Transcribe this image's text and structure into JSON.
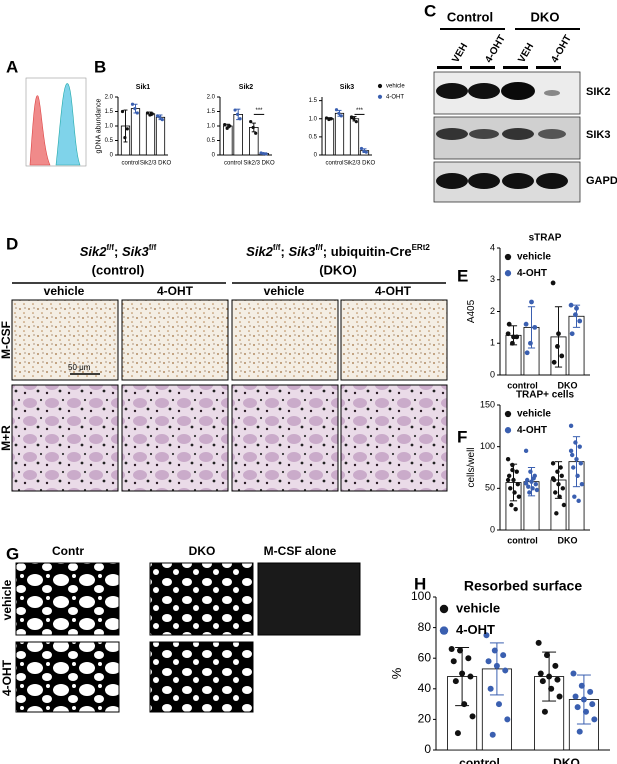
{
  "figure": {
    "panel_labels": [
      "A",
      "B",
      "C",
      "D",
      "E",
      "F",
      "G",
      "H"
    ],
    "blot": {
      "groups": [
        "Control",
        "DKO"
      ],
      "lanes": [
        "VEH",
        "4-OHT",
        "VEH",
        "4-OHT"
      ],
      "proteins": [
        "SIK2",
        "SIK3",
        "GAPDH"
      ]
    },
    "micrographs": {
      "left_title": [
        "Sik2",
        "f/f",
        "; ",
        "Sik3",
        "f/f"
      ],
      "left_subtitle": "(control)",
      "right_title": [
        "Sik2",
        "f/f",
        "; ",
        "Sik3",
        "f/f",
        "; ubiquitin-Cre",
        "ERt2"
      ],
      "right_subtitle": "(DKO)",
      "columns": [
        "vehicle",
        "4-OHT",
        "vehicle",
        "4-OHT"
      ],
      "rows": [
        "M-CSF",
        "M+R"
      ],
      "scale_bar": "50 μm"
    },
    "resorption": {
      "columns": [
        "Contr",
        "DKO",
        "M-CSF alone"
      ],
      "rows": [
        "vehicle",
        "4-OHT"
      ]
    }
  },
  "chart_data": [
    {
      "type": "bar",
      "title": "Sik1",
      "ylabel": "gDNA abundance",
      "categories": [
        "control",
        "Sik2/3 DKO"
      ],
      "ylim": [
        0,
        2
      ],
      "yticks": [
        0,
        0.5,
        {
          "value": 1,
          "label": "1.0"
        },
        1.5,
        {
          "value": 2,
          "label": "2.0"
        }
      ],
      "series": [
        {
          "color": "#111111",
          "values": [
            1.0,
            1.42
          ],
          "errors": [
            0.55,
            0.06
          ],
          "points": [
            [
              1.5,
              0.6,
              0.9
            ],
            [
              1.45,
              1.38,
              1.42
            ]
          ]
        },
        {
          "color": "#3a5fb0",
          "values": [
            1.6,
            1.3
          ],
          "errors": [
            0.15,
            0.08
          ],
          "points": [
            [
              1.75,
              1.6,
              1.45
            ],
            [
              1.35,
              1.3,
              1.22
            ]
          ]
        }
      ]
    },
    {
      "type": "bar",
      "title": "Sik2",
      "categories": [
        "control",
        "Sik2/3 DKO"
      ],
      "ylim": [
        0,
        2
      ],
      "yticks": [
        0,
        0.5,
        {
          "value": 1,
          "label": "1.0"
        },
        1.5,
        {
          "value": 2,
          "label": "2.0"
        }
      ],
      "annotation": "***",
      "series": [
        {
          "color": "#111111",
          "values": [
            1.0,
            0.95
          ],
          "errors": [
            0.06,
            0.15
          ],
          "points": [
            [
              1.05,
              0.92,
              1.0
            ],
            [
              1.15,
              0.95,
              0.75
            ]
          ]
        },
        {
          "color": "#3a5fb0",
          "values": [
            1.4,
            0.05
          ],
          "errors": [
            0.18,
            0.02
          ],
          "points": [
            [
              1.55,
              1.4,
              1.25
            ],
            [
              0.07,
              0.05,
              0.04
            ]
          ]
        }
      ]
    },
    {
      "type": "bar",
      "title": "Sik3",
      "categories": [
        "control",
        "Sik2/3 DKO"
      ],
      "ylim": [
        0,
        1.6
      ],
      "yticks": [
        0,
        0.5,
        {
          "value": 1,
          "label": "1.0"
        },
        1.5
      ],
      "annotation": "***",
      "legend": "right",
      "series": [
        {
          "name": "vehicle",
          "color": "#111111",
          "values": [
            1.0,
            1.0
          ],
          "errors": [
            0.03,
            0.06
          ],
          "points": [
            [
              1.02,
              0.98,
              1.0
            ],
            [
              1.05,
              1.0,
              0.92
            ]
          ]
        },
        {
          "name": "4-OHT",
          "color": "#3a5fb0",
          "values": [
            1.15,
            0.12
          ],
          "errors": [
            0.08,
            0.05
          ],
          "points": [
            [
              1.25,
              1.15,
              1.08
            ],
            [
              0.18,
              0.1,
              0.08
            ]
          ]
        }
      ]
    },
    {
      "type": "bar",
      "title": "sTRAP",
      "ylabel": "A405",
      "categories": [
        "control",
        "DKO"
      ],
      "ylim": [
        0,
        4
      ],
      "yticks": [
        0,
        1,
        2,
        3,
        4
      ],
      "legend": "upper left",
      "series": [
        {
          "name": "vehicle",
          "color": "#111111",
          "values": [
            1.25,
            1.2
          ],
          "errors": [
            0.3,
            0.95
          ],
          "points": [
            [
              1.3,
              1.0,
              1.2,
              1.6,
              1.2
            ],
            [
              2.9,
              0.9,
              0.6,
              0.4,
              1.3
            ]
          ]
        },
        {
          "name": "4-OHT",
          "color": "#3a5fb0",
          "values": [
            1.5,
            1.85
          ],
          "errors": [
            0.65,
            0.35
          ],
          "points": [
            [
              1.6,
              1.0,
              1.5,
              0.7,
              2.3
            ],
            [
              2.2,
              1.9,
              1.7,
              1.3,
              2.1
            ]
          ]
        }
      ]
    },
    {
      "type": "bar",
      "title": "TRAP+ cells",
      "ylabel": "cells/well",
      "categories": [
        "control",
        "DKO"
      ],
      "ylim": [
        0,
        150
      ],
      "yticks": [
        0,
        50,
        100,
        150
      ],
      "legend": "upper left",
      "series": [
        {
          "name": "vehicle",
          "color": "#111111",
          "values": [
            57,
            60
          ],
          "errors": [
            22,
            22
          ],
          "points": [
            [
              85,
              78,
              70,
              65,
              60,
              55,
              50,
              45,
              40,
              30,
              25,
              60,
              72
            ],
            [
              80,
              70,
              65,
              60,
              55,
              50,
              45,
              40,
              30,
              20,
              75,
              62
            ]
          ]
        },
        {
          "name": "4-OHT",
          "color": "#3a5fb0",
          "values": [
            58,
            82
          ],
          "errors": [
            17,
            30
          ],
          "points": [
            [
              95,
              70,
              65,
              60,
              58,
              55,
              52,
              50,
              48,
              45,
              62,
              56
            ],
            [
              125,
              105,
              100,
              90,
              85,
              80,
              75,
              65,
              55,
              40,
              35,
              95
            ]
          ]
        }
      ]
    },
    {
      "type": "bar",
      "title": "Resorbed surface",
      "ylabel": "%",
      "categories": [
        "control",
        "DKO"
      ],
      "ylim": [
        0,
        100
      ],
      "yticks": [
        0,
        20,
        40,
        60,
        80,
        100
      ],
      "legend": "upper left",
      "series": [
        {
          "name": "vehicle",
          "color": "#111111",
          "values": [
            48,
            48
          ],
          "errors": [
            19,
            16
          ],
          "points": [
            [
              66,
              65,
              60,
              58,
              50,
              48,
              45,
              30,
              22,
              11
            ],
            [
              70,
              62,
              55,
              50,
              48,
              46,
              45,
              40,
              35,
              25
            ]
          ]
        },
        {
          "name": "4-OHT",
          "color": "#3a5fb0",
          "values": [
            53,
            33
          ],
          "errors": [
            17,
            16
          ],
          "points": [
            [
              75,
              65,
              62,
              58,
              55,
              52,
              40,
              30,
              20,
              10
            ],
            [
              50,
              42,
              38,
              35,
              33,
              30,
              28,
              25,
              20,
              12
            ]
          ]
        }
      ]
    }
  ]
}
